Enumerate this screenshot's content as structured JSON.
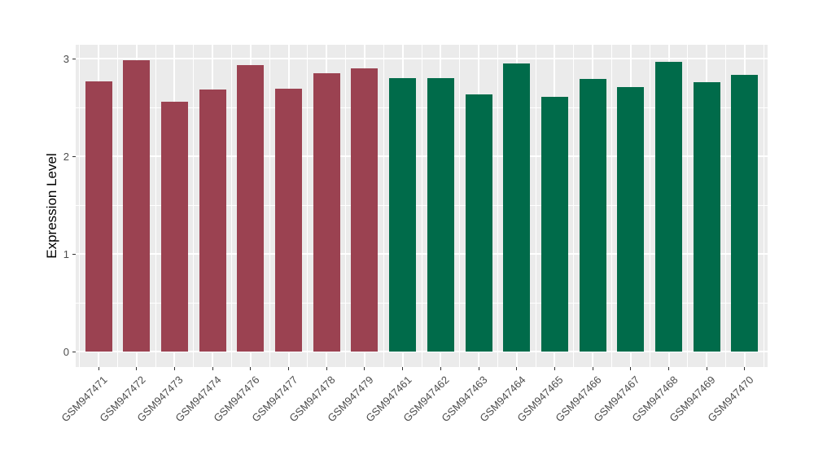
{
  "chart_data": {
    "type": "bar",
    "title": "",
    "xlabel": "",
    "ylabel": "Expression Level",
    "ylim": [
      -0.16,
      3.14
    ],
    "yticks": [
      0,
      1,
      2,
      3
    ],
    "yticks_minor": [
      0.5,
      1.5,
      2.5
    ],
    "grid": true,
    "legend": "none",
    "panel_bg_color": "#EBEBEB",
    "gridline_color": "#FFFFFF",
    "tick_color": "#333333",
    "tick_label_color": "#4D4D4D",
    "group_colors": {
      "group1": "#9B4251",
      "group2": "#006B4A"
    },
    "bars": [
      {
        "label": "GSM947471",
        "value": 2.77,
        "group": "group1"
      },
      {
        "label": "GSM947472",
        "value": 2.98,
        "group": "group1"
      },
      {
        "label": "GSM947473",
        "value": 2.56,
        "group": "group1"
      },
      {
        "label": "GSM947474",
        "value": 2.68,
        "group": "group1"
      },
      {
        "label": "GSM947476",
        "value": 2.93,
        "group": "group1"
      },
      {
        "label": "GSM947477",
        "value": 2.69,
        "group": "group1"
      },
      {
        "label": "GSM947478",
        "value": 2.85,
        "group": "group1"
      },
      {
        "label": "GSM947479",
        "value": 2.9,
        "group": "group1"
      },
      {
        "label": "GSM947461",
        "value": 2.8,
        "group": "group2"
      },
      {
        "label": "GSM947462",
        "value": 2.8,
        "group": "group2"
      },
      {
        "label": "GSM947463",
        "value": 2.63,
        "group": "group2"
      },
      {
        "label": "GSM947464",
        "value": 2.95,
        "group": "group2"
      },
      {
        "label": "GSM947465",
        "value": 2.61,
        "group": "group2"
      },
      {
        "label": "GSM947466",
        "value": 2.79,
        "group": "group2"
      },
      {
        "label": "GSM947467",
        "value": 2.71,
        "group": "group2"
      },
      {
        "label": "GSM947468",
        "value": 2.97,
        "group": "group2"
      },
      {
        "label": "GSM947469",
        "value": 2.76,
        "group": "group2"
      },
      {
        "label": "GSM947470",
        "value": 2.83,
        "group": "group2"
      }
    ]
  }
}
